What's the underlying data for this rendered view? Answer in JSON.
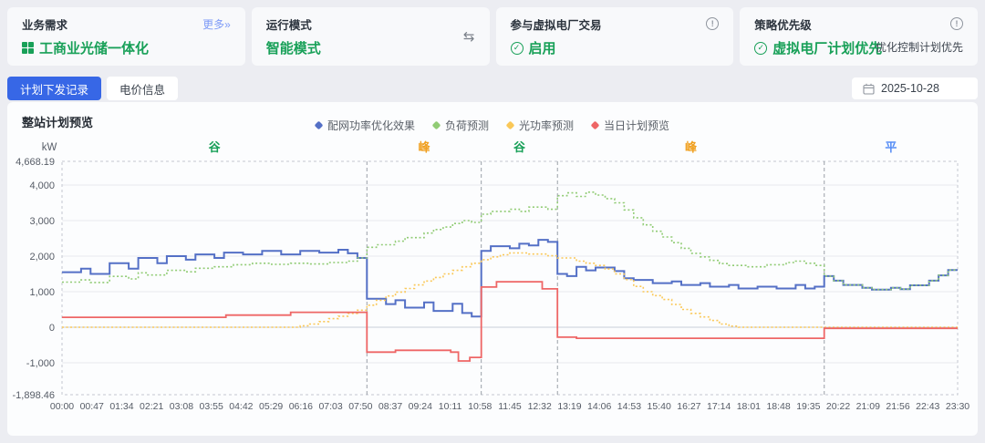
{
  "header": {
    "cards": [
      {
        "label": "业务需求",
        "more": "更多»",
        "value": "工商业光储一体化"
      },
      {
        "label": "运行模式",
        "value": "智能模式"
      },
      {
        "label": "参与虚拟电厂交易",
        "value": "启用"
      },
      {
        "label": "策略优先级",
        "value": "虚拟电厂计划优先",
        "secondary": "优化控制计划优先"
      }
    ]
  },
  "tabs": [
    {
      "label": "计划下发记录",
      "active": true
    },
    {
      "label": "电价信息",
      "active": false
    }
  ],
  "date_picker": {
    "value": "2025-10-28"
  },
  "panel": {
    "title": "整站计划预览"
  },
  "colors": {
    "accent_green": "#18a058",
    "tab_active_blue": "#3767e6",
    "band_valley": "#18a058",
    "band_peak": "#f0a020",
    "band_flat": "#568df5"
  },
  "chart_data": {
    "type": "line",
    "subtype": "step",
    "title": "整站计划预览",
    "ylabel": "kW",
    "x_hours_range": [
      0,
      23.5
    ],
    "y_min": -1898.46,
    "y_max": 4668.19,
    "grid": true,
    "legend_position": "top-center",
    "y_ticks": [
      {
        "v": 4668.19,
        "label": "4,668.19"
      },
      {
        "v": 4000,
        "label": "4,000"
      },
      {
        "v": 3000,
        "label": "3,000"
      },
      {
        "v": 2000,
        "label": "2,000"
      },
      {
        "v": 1000,
        "label": "1,000"
      },
      {
        "v": 0,
        "label": "0"
      },
      {
        "v": -1000,
        "label": "-1,000"
      },
      {
        "v": -1898.46,
        "label": "-1,898.46"
      }
    ],
    "x_tick_labels": [
      "00:00",
      "00:47",
      "01:34",
      "02:21",
      "03:08",
      "03:55",
      "04:42",
      "05:29",
      "06:16",
      "07:03",
      "07:50",
      "08:37",
      "09:24",
      "10:11",
      "10:58",
      "11:45",
      "12:32",
      "13:19",
      "14:06",
      "14:53",
      "15:40",
      "16:27",
      "17:14",
      "18:01",
      "18:48",
      "19:35",
      "20:22",
      "21:09",
      "21:56",
      "22:43",
      "23:30"
    ],
    "bands": [
      {
        "label": "谷",
        "color": "#18a058",
        "from": 0,
        "to": 8
      },
      {
        "label": "峰",
        "color": "#f0a020",
        "from": 8,
        "to": 11
      },
      {
        "label": "谷",
        "color": "#18a058",
        "from": 11,
        "to": 13
      },
      {
        "label": "峰",
        "color": "#f0a020",
        "from": 13,
        "to": 20
      },
      {
        "label": "平",
        "color": "#568df5",
        "from": 20,
        "to": 23.5
      }
    ],
    "boundaries_hours": [
      8,
      11,
      13,
      20
    ],
    "series": [
      {
        "name": "配网功率优化效果",
        "color": "#5470c6",
        "style": "solid",
        "width": 2,
        "points": [
          [
            0,
            1550
          ],
          [
            0.5,
            1650
          ],
          [
            0.75,
            1500
          ],
          [
            1.25,
            1800
          ],
          [
            1.75,
            1650
          ],
          [
            2,
            1950
          ],
          [
            2.5,
            1800
          ],
          [
            2.75,
            2000
          ],
          [
            3.25,
            1900
          ],
          [
            3.5,
            2050
          ],
          [
            4,
            1950
          ],
          [
            4.25,
            2100
          ],
          [
            4.75,
            2050
          ],
          [
            5.25,
            2150
          ],
          [
            5.75,
            2050
          ],
          [
            6.25,
            2150
          ],
          [
            6.75,
            2100
          ],
          [
            7.25,
            2180
          ],
          [
            7.5,
            2080
          ],
          [
            7.75,
            1950
          ],
          [
            8,
            800
          ],
          [
            8.5,
            650
          ],
          [
            8.75,
            760
          ],
          [
            9,
            550
          ],
          [
            9.5,
            700
          ],
          [
            9.75,
            460
          ],
          [
            10.25,
            660
          ],
          [
            10.5,
            400
          ],
          [
            10.75,
            300
          ],
          [
            11,
            2150
          ],
          [
            11.25,
            2280
          ],
          [
            11.75,
            2220
          ],
          [
            12,
            2350
          ],
          [
            12.25,
            2300
          ],
          [
            12.5,
            2460
          ],
          [
            12.75,
            2400
          ],
          [
            13,
            1500
          ],
          [
            13.25,
            1440
          ],
          [
            13.5,
            1700
          ],
          [
            13.75,
            1600
          ],
          [
            14,
            1680
          ],
          [
            14.5,
            1580
          ],
          [
            14.75,
            1380
          ],
          [
            15,
            1330
          ],
          [
            15.5,
            1240
          ],
          [
            16,
            1290
          ],
          [
            16.25,
            1190
          ],
          [
            16.75,
            1240
          ],
          [
            17,
            1140
          ],
          [
            17.5,
            1190
          ],
          [
            17.75,
            1090
          ],
          [
            18.25,
            1140
          ],
          [
            18.75,
            1090
          ],
          [
            19.25,
            1190
          ],
          [
            19.5,
            1090
          ],
          [
            19.75,
            1140
          ],
          [
            20,
            1440
          ],
          [
            20.25,
            1310
          ],
          [
            20.5,
            1190
          ],
          [
            21,
            1110
          ],
          [
            21.25,
            1060
          ],
          [
            21.75,
            1110
          ],
          [
            22,
            1070
          ],
          [
            22.25,
            1180
          ],
          [
            22.75,
            1310
          ],
          [
            23,
            1460
          ],
          [
            23.25,
            1610
          ],
          [
            23.5,
            1610
          ]
        ]
      },
      {
        "name": "负荷预测",
        "color": "#91cc75",
        "style": "dotted",
        "width": 1.6,
        "points": [
          [
            0,
            1270
          ],
          [
            0.5,
            1330
          ],
          [
            0.75,
            1260
          ],
          [
            1.25,
            1430
          ],
          [
            1.75,
            1360
          ],
          [
            2,
            1530
          ],
          [
            2.25,
            1470
          ],
          [
            2.75,
            1600
          ],
          [
            3.25,
            1560
          ],
          [
            3.5,
            1660
          ],
          [
            4,
            1700
          ],
          [
            4.5,
            1760
          ],
          [
            5,
            1800
          ],
          [
            5.5,
            1770
          ],
          [
            6,
            1800
          ],
          [
            6.5,
            1780
          ],
          [
            7,
            1820
          ],
          [
            7.5,
            1860
          ],
          [
            7.75,
            1950
          ],
          [
            8,
            2250
          ],
          [
            8.25,
            2320
          ],
          [
            8.75,
            2420
          ],
          [
            9,
            2520
          ],
          [
            9.5,
            2650
          ],
          [
            9.75,
            2750
          ],
          [
            10,
            2820
          ],
          [
            10.25,
            2920
          ],
          [
            10.5,
            3000
          ],
          [
            10.75,
            2950
          ],
          [
            11,
            3180
          ],
          [
            11.25,
            3260
          ],
          [
            11.75,
            3320
          ],
          [
            12,
            3260
          ],
          [
            12.25,
            3380
          ],
          [
            12.75,
            3320
          ],
          [
            13,
            3700
          ],
          [
            13.25,
            3780
          ],
          [
            13.5,
            3680
          ],
          [
            13.75,
            3800
          ],
          [
            14,
            3720
          ],
          [
            14.25,
            3620
          ],
          [
            14.5,
            3500
          ],
          [
            14.75,
            3300
          ],
          [
            15,
            3080
          ],
          [
            15.25,
            2880
          ],
          [
            15.5,
            2700
          ],
          [
            15.75,
            2540
          ],
          [
            16,
            2380
          ],
          [
            16.25,
            2220
          ],
          [
            16.5,
            2080
          ],
          [
            16.75,
            1980
          ],
          [
            17,
            1880
          ],
          [
            17.25,
            1790
          ],
          [
            17.5,
            1740
          ],
          [
            18,
            1700
          ],
          [
            18.5,
            1760
          ],
          [
            19,
            1820
          ],
          [
            19.25,
            1860
          ],
          [
            19.5,
            1800
          ],
          [
            19.75,
            1740
          ],
          [
            20,
            1440
          ],
          [
            20.25,
            1310
          ],
          [
            20.5,
            1190
          ],
          [
            21,
            1110
          ],
          [
            21.25,
            1060
          ],
          [
            21.75,
            1110
          ],
          [
            22,
            1070
          ],
          [
            22.25,
            1180
          ],
          [
            22.75,
            1310
          ],
          [
            23,
            1460
          ],
          [
            23.25,
            1610
          ],
          [
            23.5,
            1610
          ]
        ]
      },
      {
        "name": "光功率预测",
        "color": "#fac858",
        "style": "dotted",
        "width": 1.6,
        "points": [
          [
            0,
            0
          ],
          [
            6,
            0
          ],
          [
            6.25,
            40
          ],
          [
            6.5,
            90
          ],
          [
            6.75,
            160
          ],
          [
            7,
            240
          ],
          [
            7.25,
            310
          ],
          [
            7.5,
            390
          ],
          [
            7.75,
            480
          ],
          [
            8,
            620
          ],
          [
            8.25,
            760
          ],
          [
            8.5,
            880
          ],
          [
            8.75,
            990
          ],
          [
            9,
            1090
          ],
          [
            9.25,
            1190
          ],
          [
            9.5,
            1300
          ],
          [
            9.75,
            1400
          ],
          [
            10,
            1500
          ],
          [
            10.25,
            1600
          ],
          [
            10.5,
            1700
          ],
          [
            10.75,
            1800
          ],
          [
            11,
            1900
          ],
          [
            11.25,
            1980
          ],
          [
            11.5,
            2040
          ],
          [
            11.75,
            2090
          ],
          [
            12.25,
            2060
          ],
          [
            12.75,
            2010
          ],
          [
            13,
            1950
          ],
          [
            13.5,
            1860
          ],
          [
            13.75,
            1800
          ],
          [
            14,
            1740
          ],
          [
            14.25,
            1640
          ],
          [
            14.5,
            1500
          ],
          [
            14.75,
            1340
          ],
          [
            15,
            1150
          ],
          [
            15.25,
            1000
          ],
          [
            15.5,
            890
          ],
          [
            15.75,
            780
          ],
          [
            16,
            640
          ],
          [
            16.25,
            500
          ],
          [
            16.5,
            390
          ],
          [
            16.75,
            290
          ],
          [
            17,
            190
          ],
          [
            17.25,
            90
          ],
          [
            17.5,
            30
          ],
          [
            17.75,
            0
          ],
          [
            23.5,
            0
          ]
        ]
      },
      {
        "name": "当日计划预览",
        "color": "#ee6666",
        "style": "solid",
        "width": 1.8,
        "points": [
          [
            0,
            280
          ],
          [
            4.3,
            340
          ],
          [
            6,
            420
          ],
          [
            8,
            -700
          ],
          [
            8.75,
            -650
          ],
          [
            10.2,
            -700
          ],
          [
            10.4,
            -950
          ],
          [
            10.7,
            -850
          ],
          [
            11,
            1130
          ],
          [
            11.4,
            1280
          ],
          [
            12.6,
            1080
          ],
          [
            13,
            -280
          ],
          [
            13.5,
            -310
          ],
          [
            20,
            -30
          ],
          [
            23.5,
            -30
          ]
        ]
      }
    ]
  }
}
